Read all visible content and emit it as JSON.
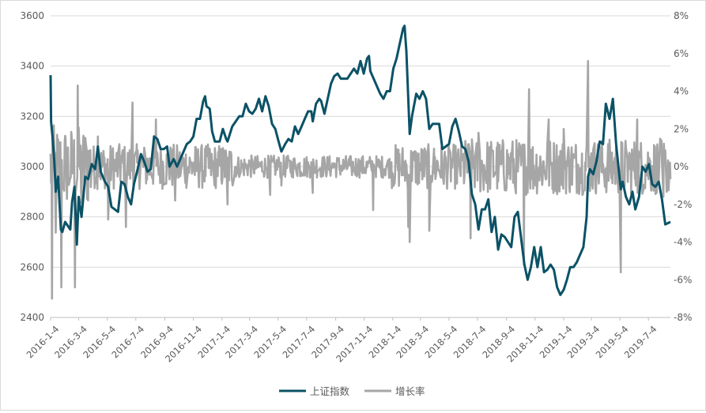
{
  "chart_data": {
    "type": "line",
    "x_axis": {
      "labels": [
        "2016-1-4",
        "2016-3-4",
        "2016-5-4",
        "2016-7-4",
        "2016-9-4",
        "2016-11-4",
        "2017-1-4",
        "2017-3-4",
        "2017-5-4",
        "2017-7-4",
        "2017-9-4",
        "2017-11-4",
        "2018-1-4",
        "2018-3-4",
        "2018-5-4",
        "2018-7-4",
        "2018-9-4",
        "2018-11-4",
        "2019-1-4",
        "2019-3-4",
        "2019-5-4",
        "2019-7-4"
      ],
      "range": [
        "2016-01-04",
        "2019-08-20"
      ]
    },
    "y_left": {
      "ticks": [
        "2400",
        "2600",
        "2800",
        "3000",
        "3200",
        "3400",
        "3600"
      ],
      "ylim": [
        2400,
        3600
      ]
    },
    "y_right": {
      "ticks": [
        "-8%",
        "-6%",
        "-4%",
        "-2%",
        "0%",
        "2%",
        "4%",
        "6%",
        "8%"
      ],
      "ylim": [
        -8,
        8
      ]
    },
    "grid": "horizontal",
    "legend_position": "bottom",
    "series": [
      {
        "name": "上证指数",
        "axis": "left",
        "color": "#0b5266",
        "points": [
          [
            "2016-01-04",
            3364
          ],
          [
            "2016-01-05",
            3180
          ],
          [
            "2016-01-08",
            3120
          ],
          [
            "2016-01-12",
            3020
          ],
          [
            "2016-01-15",
            2900
          ],
          [
            "2016-01-20",
            2960
          ],
          [
            "2016-01-26",
            2750
          ],
          [
            "2016-01-29",
            2740
          ],
          [
            "2016-02-04",
            2780
          ],
          [
            "2016-02-15",
            2750
          ],
          [
            "2016-02-19",
            2860
          ],
          [
            "2016-02-24",
            2920
          ],
          [
            "2016-02-29",
            2690
          ],
          [
            "2016-03-04",
            2880
          ],
          [
            "2016-03-10",
            2800
          ],
          [
            "2016-03-18",
            2960
          ],
          [
            "2016-03-24",
            2950
          ],
          [
            "2016-04-01",
            3010
          ],
          [
            "2016-04-08",
            2990
          ],
          [
            "2016-04-14",
            3080
          ],
          [
            "2016-04-20",
            2980
          ],
          [
            "2016-04-29",
            2940
          ],
          [
            "2016-05-06",
            2920
          ],
          [
            "2016-05-13",
            2840
          ],
          [
            "2016-05-20",
            2830
          ],
          [
            "2016-05-27",
            2820
          ],
          [
            "2016-06-03",
            2940
          ],
          [
            "2016-06-10",
            2930
          ],
          [
            "2016-06-17",
            2880
          ],
          [
            "2016-06-24",
            2850
          ],
          [
            "2016-06-30",
            2930
          ],
          [
            "2016-07-08",
            2990
          ],
          [
            "2016-07-15",
            3050
          ],
          [
            "2016-07-22",
            3020
          ],
          [
            "2016-07-29",
            2980
          ],
          [
            "2016-08-05",
            2990
          ],
          [
            "2016-08-12",
            3120
          ],
          [
            "2016-08-19",
            3110
          ],
          [
            "2016-08-26",
            3070
          ],
          [
            "2016-09-02",
            3070
          ],
          [
            "2016-09-09",
            3080
          ],
          [
            "2016-09-14",
            3000
          ],
          [
            "2016-09-23",
            3030
          ],
          [
            "2016-09-30",
            3000
          ],
          [
            "2016-10-14",
            3060
          ],
          [
            "2016-10-21",
            3090
          ],
          [
            "2016-10-28",
            3100
          ],
          [
            "2016-11-04",
            3120
          ],
          [
            "2016-11-11",
            3190
          ],
          [
            "2016-11-18",
            3190
          ],
          [
            "2016-11-25",
            3260
          ],
          [
            "2016-11-29",
            3280
          ],
          [
            "2016-12-02",
            3240
          ],
          [
            "2016-12-09",
            3230
          ],
          [
            "2016-12-14",
            3140
          ],
          [
            "2016-12-20",
            3100
          ],
          [
            "2016-12-30",
            3100
          ],
          [
            "2017-01-06",
            3150
          ],
          [
            "2017-01-13",
            3110
          ],
          [
            "2017-01-16",
            3100
          ],
          [
            "2017-01-26",
            3160
          ],
          [
            "2017-02-10",
            3200
          ],
          [
            "2017-02-17",
            3200
          ],
          [
            "2017-02-24",
            3250
          ],
          [
            "2017-03-03",
            3220
          ],
          [
            "2017-03-10",
            3210
          ],
          [
            "2017-03-17",
            3230
          ],
          [
            "2017-03-24",
            3270
          ],
          [
            "2017-03-31",
            3220
          ],
          [
            "2017-04-07",
            3280
          ],
          [
            "2017-04-14",
            3240
          ],
          [
            "2017-04-21",
            3170
          ],
          [
            "2017-04-28",
            3150
          ],
          [
            "2017-05-05",
            3100
          ],
          [
            "2017-05-11",
            3060
          ],
          [
            "2017-05-19",
            3090
          ],
          [
            "2017-05-26",
            3110
          ],
          [
            "2017-06-02",
            3100
          ],
          [
            "2017-06-09",
            3160
          ],
          [
            "2017-06-16",
            3130
          ],
          [
            "2017-06-23",
            3160
          ],
          [
            "2017-06-30",
            3190
          ],
          [
            "2017-07-07",
            3220
          ],
          [
            "2017-07-14",
            3220
          ],
          [
            "2017-07-17",
            3180
          ],
          [
            "2017-07-24",
            3250
          ],
          [
            "2017-07-31",
            3270
          ],
          [
            "2017-08-04",
            3260
          ],
          [
            "2017-08-11",
            3210
          ],
          [
            "2017-08-18",
            3270
          ],
          [
            "2017-08-25",
            3330
          ],
          [
            "2017-09-01",
            3360
          ],
          [
            "2017-09-08",
            3370
          ],
          [
            "2017-09-15",
            3350
          ],
          [
            "2017-09-22",
            3350
          ],
          [
            "2017-09-29",
            3350
          ],
          [
            "2017-10-13",
            3390
          ],
          [
            "2017-10-20",
            3370
          ],
          [
            "2017-10-27",
            3420
          ],
          [
            "2017-11-03",
            3370
          ],
          [
            "2017-11-10",
            3430
          ],
          [
            "2017-11-14",
            3440
          ],
          [
            "2017-11-17",
            3380
          ],
          [
            "2017-11-24",
            3350
          ],
          [
            "2017-12-01",
            3320
          ],
          [
            "2017-12-08",
            3290
          ],
          [
            "2017-12-15",
            3270
          ],
          [
            "2017-12-22",
            3300
          ],
          [
            "2017-12-29",
            3300
          ],
          [
            "2018-01-05",
            3390
          ],
          [
            "2018-01-12",
            3430
          ],
          [
            "2018-01-19",
            3490
          ],
          [
            "2018-01-26",
            3550
          ],
          [
            "2018-01-29",
            3560
          ],
          [
            "2018-02-02",
            3460
          ],
          [
            "2018-02-09",
            3130
          ],
          [
            "2018-02-14",
            3200
          ],
          [
            "2018-02-23",
            3290
          ],
          [
            "2018-03-02",
            3270
          ],
          [
            "2018-03-09",
            3300
          ],
          [
            "2018-03-16",
            3270
          ],
          [
            "2018-03-23",
            3150
          ],
          [
            "2018-03-30",
            3170
          ],
          [
            "2018-04-13",
            3170
          ],
          [
            "2018-04-20",
            3070
          ],
          [
            "2018-04-27",
            3080
          ],
          [
            "2018-05-04",
            3090
          ],
          [
            "2018-05-11",
            3160
          ],
          [
            "2018-05-18",
            3190
          ],
          [
            "2018-05-25",
            3140
          ],
          [
            "2018-06-01",
            3080
          ],
          [
            "2018-06-08",
            3070
          ],
          [
            "2018-06-15",
            3020
          ],
          [
            "2018-06-22",
            2890
          ],
          [
            "2018-06-29",
            2850
          ],
          [
            "2018-07-06",
            2750
          ],
          [
            "2018-07-13",
            2830
          ],
          [
            "2018-07-20",
            2830
          ],
          [
            "2018-07-27",
            2870
          ],
          [
            "2018-08-03",
            2740
          ],
          [
            "2018-08-10",
            2800
          ],
          [
            "2018-08-17",
            2670
          ],
          [
            "2018-08-24",
            2730
          ],
          [
            "2018-08-31",
            2720
          ],
          [
            "2018-09-07",
            2700
          ],
          [
            "2018-09-14",
            2680
          ],
          [
            "2018-09-21",
            2800
          ],
          [
            "2018-09-28",
            2820
          ],
          [
            "2018-10-12",
            2610
          ],
          [
            "2018-10-19",
            2550
          ],
          [
            "2018-10-26",
            2600
          ],
          [
            "2018-11-02",
            2680
          ],
          [
            "2018-11-09",
            2600
          ],
          [
            "2018-11-16",
            2680
          ],
          [
            "2018-11-23",
            2580
          ],
          [
            "2018-11-30",
            2590
          ],
          [
            "2018-12-07",
            2610
          ],
          [
            "2018-12-14",
            2590
          ],
          [
            "2018-12-21",
            2520
          ],
          [
            "2018-12-28",
            2490
          ],
          [
            "2019-01-04",
            2510
          ],
          [
            "2019-01-11",
            2550
          ],
          [
            "2019-01-18",
            2600
          ],
          [
            "2019-01-25",
            2600
          ],
          [
            "2019-02-01",
            2620
          ],
          [
            "2019-02-15",
            2680
          ],
          [
            "2019-02-22",
            2800
          ],
          [
            "2019-02-25",
            2960
          ],
          [
            "2019-03-01",
            2990
          ],
          [
            "2019-03-08",
            2970
          ],
          [
            "2019-03-15",
            3020
          ],
          [
            "2019-03-22",
            3100
          ],
          [
            "2019-03-29",
            3090
          ],
          [
            "2019-04-04",
            3250
          ],
          [
            "2019-04-12",
            3190
          ],
          [
            "2019-04-19",
            3270
          ],
          [
            "2019-04-26",
            3090
          ],
          [
            "2019-05-06",
            2910
          ],
          [
            "2019-05-10",
            2940
          ],
          [
            "2019-05-17",
            2880
          ],
          [
            "2019-05-24",
            2850
          ],
          [
            "2019-05-31",
            2900
          ],
          [
            "2019-06-06",
            2830
          ],
          [
            "2019-06-14",
            2880
          ],
          [
            "2019-06-21",
            3000
          ],
          [
            "2019-06-28",
            2980
          ],
          [
            "2019-07-05",
            3010
          ],
          [
            "2019-07-12",
            2930
          ],
          [
            "2019-07-19",
            2920
          ],
          [
            "2019-07-26",
            2940
          ],
          [
            "2019-08-02",
            2870
          ],
          [
            "2019-08-09",
            2770
          ],
          [
            "2019-08-20",
            2780
          ]
        ]
      },
      {
        "name": "增长率",
        "axis": "right",
        "color": "#a6a6a6",
        "note": "daily growth rate (%), oscillating approximately between -7% and 5.7%",
        "points": []
      }
    ],
    "growth_spikes": [
      [
        "2016-01-07",
        -7.0
      ],
      [
        "2016-01-08",
        2.0
      ],
      [
        "2016-01-15",
        -3.5
      ],
      [
        "2016-01-27",
        -6.4
      ],
      [
        "2016-02-01",
        -1.1
      ],
      [
        "2016-02-15",
        -0.6
      ],
      [
        "2016-02-25",
        -6.4
      ],
      [
        "2016-03-02",
        4.3
      ],
      [
        "2016-03-10",
        -1.9
      ],
      [
        "2016-04-14",
        1.6
      ],
      [
        "2016-05-06",
        -2.8
      ],
      [
        "2016-06-13",
        -3.2
      ],
      [
        "2016-06-27",
        3.4
      ],
      [
        "2016-08-16",
        2.5
      ],
      [
        "2016-09-26",
        -1.8
      ],
      [
        "2017-01-16",
        -2.0
      ],
      [
        "2017-04-17",
        -1.5
      ],
      [
        "2017-05-11",
        -1.0
      ],
      [
        "2017-07-17",
        -1.4
      ],
      [
        "2017-11-23",
        -2.3
      ],
      [
        "2018-02-06",
        -3.2
      ],
      [
        "2018-02-09",
        -4.0
      ],
      [
        "2018-03-23",
        -3.4
      ],
      [
        "2018-06-19",
        -3.8
      ],
      [
        "2018-07-06",
        1.8
      ],
      [
        "2018-10-11",
        -5.2
      ],
      [
        "2018-10-22",
        4.1
      ],
      [
        "2018-12-03",
        2.5
      ],
      [
        "2019-01-04",
        2.0
      ],
      [
        "2019-02-25",
        5.6
      ],
      [
        "2019-05-06",
        -5.6
      ],
      [
        "2019-06-10",
        2.5
      ],
      [
        "2019-08-05",
        -1.6
      ]
    ]
  },
  "legend": {
    "items": [
      {
        "label": "上证指数",
        "color": "#0b5266"
      },
      {
        "label": "增长率",
        "color": "#a6a6a6"
      }
    ]
  }
}
